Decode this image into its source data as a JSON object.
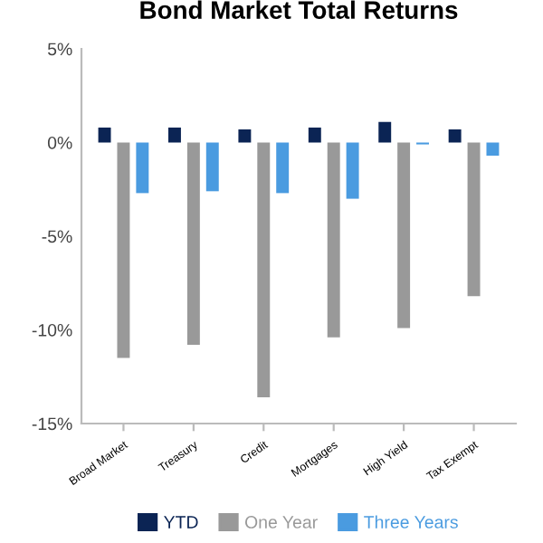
{
  "chart_data": {
    "type": "bar",
    "title": "Bond Market Total Returns",
    "categories": [
      "Broad Market",
      "Treasury",
      "Credit",
      "Mortgages",
      "High Yield",
      "Tax Exempt"
    ],
    "series": [
      {
        "name": "YTD",
        "color": "#0b2454",
        "values": [
          0.8,
          0.8,
          0.7,
          0.8,
          1.1,
          0.7
        ]
      },
      {
        "name": "One Year",
        "color": "#999999",
        "values": [
          -11.5,
          -10.8,
          -13.6,
          -10.4,
          -9.9,
          -8.2
        ]
      },
      {
        "name": "Three Years",
        "color": "#4a9be0",
        "values": [
          -2.7,
          -2.6,
          -2.7,
          -3.0,
          -0.1,
          -0.7
        ]
      }
    ],
    "ylim": [
      -15,
      5
    ],
    "yticks": [
      {
        "value": -15,
        "label": "-15%"
      },
      {
        "value": -10,
        "label": "-10%"
      },
      {
        "value": -5,
        "label": "-5%"
      },
      {
        "value": 0,
        "label": "0%"
      },
      {
        "value": 5,
        "label": "5%"
      }
    ],
    "grid": false,
    "legend": "bottom"
  }
}
